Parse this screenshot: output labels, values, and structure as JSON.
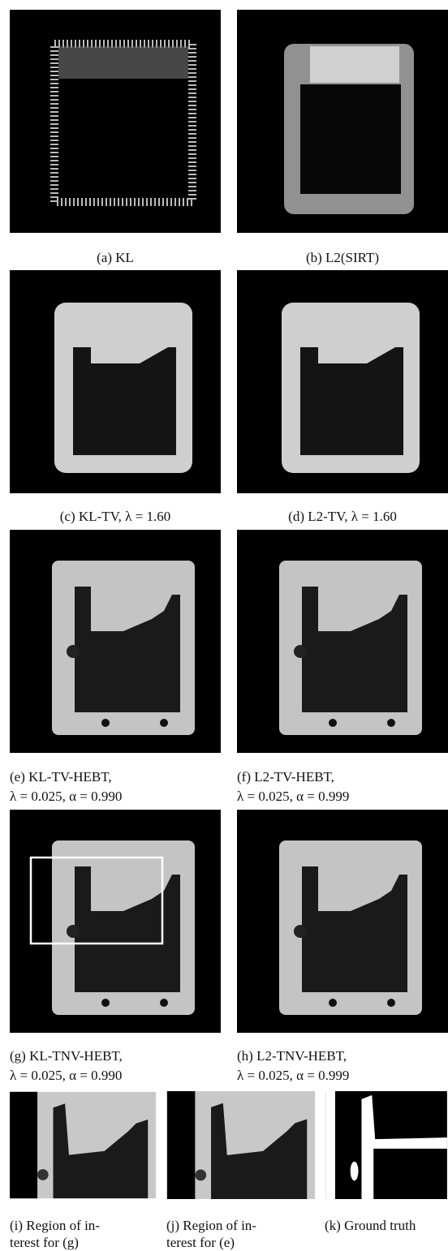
{
  "panels": [
    {
      "caption": [
        "(a) KL"
      ]
    },
    {
      "caption": [
        "(b) L2(SIRT)"
      ]
    },
    {
      "caption": [
        "(c) KL-TV, λ = 1.60"
      ]
    },
    {
      "caption": [
        "(d) L2-TV, λ = 1.60"
      ]
    },
    {
      "caption": [
        "(e) KL-TV-HEBT,",
        "λ = 0.025, α = 0.990"
      ]
    },
    {
      "caption": [
        "(f) L2-TV-HEBT,",
        "λ = 0.025, α = 0.999"
      ]
    },
    {
      "caption": [
        "(g) KL-TNV-HEBT,",
        "λ = 0.025, α = 0.990"
      ]
    },
    {
      "caption": [
        "(h) L2-TNV-HEBT,",
        "λ = 0.025, α = 0.999"
      ]
    },
    {
      "caption": [
        "(i) Region of in-",
        "terest for (g)"
      ]
    },
    {
      "caption": [
        "(j) Region of in-",
        "terest for (e)"
      ]
    },
    {
      "caption": [
        "(k) Ground truth"
      ]
    }
  ]
}
